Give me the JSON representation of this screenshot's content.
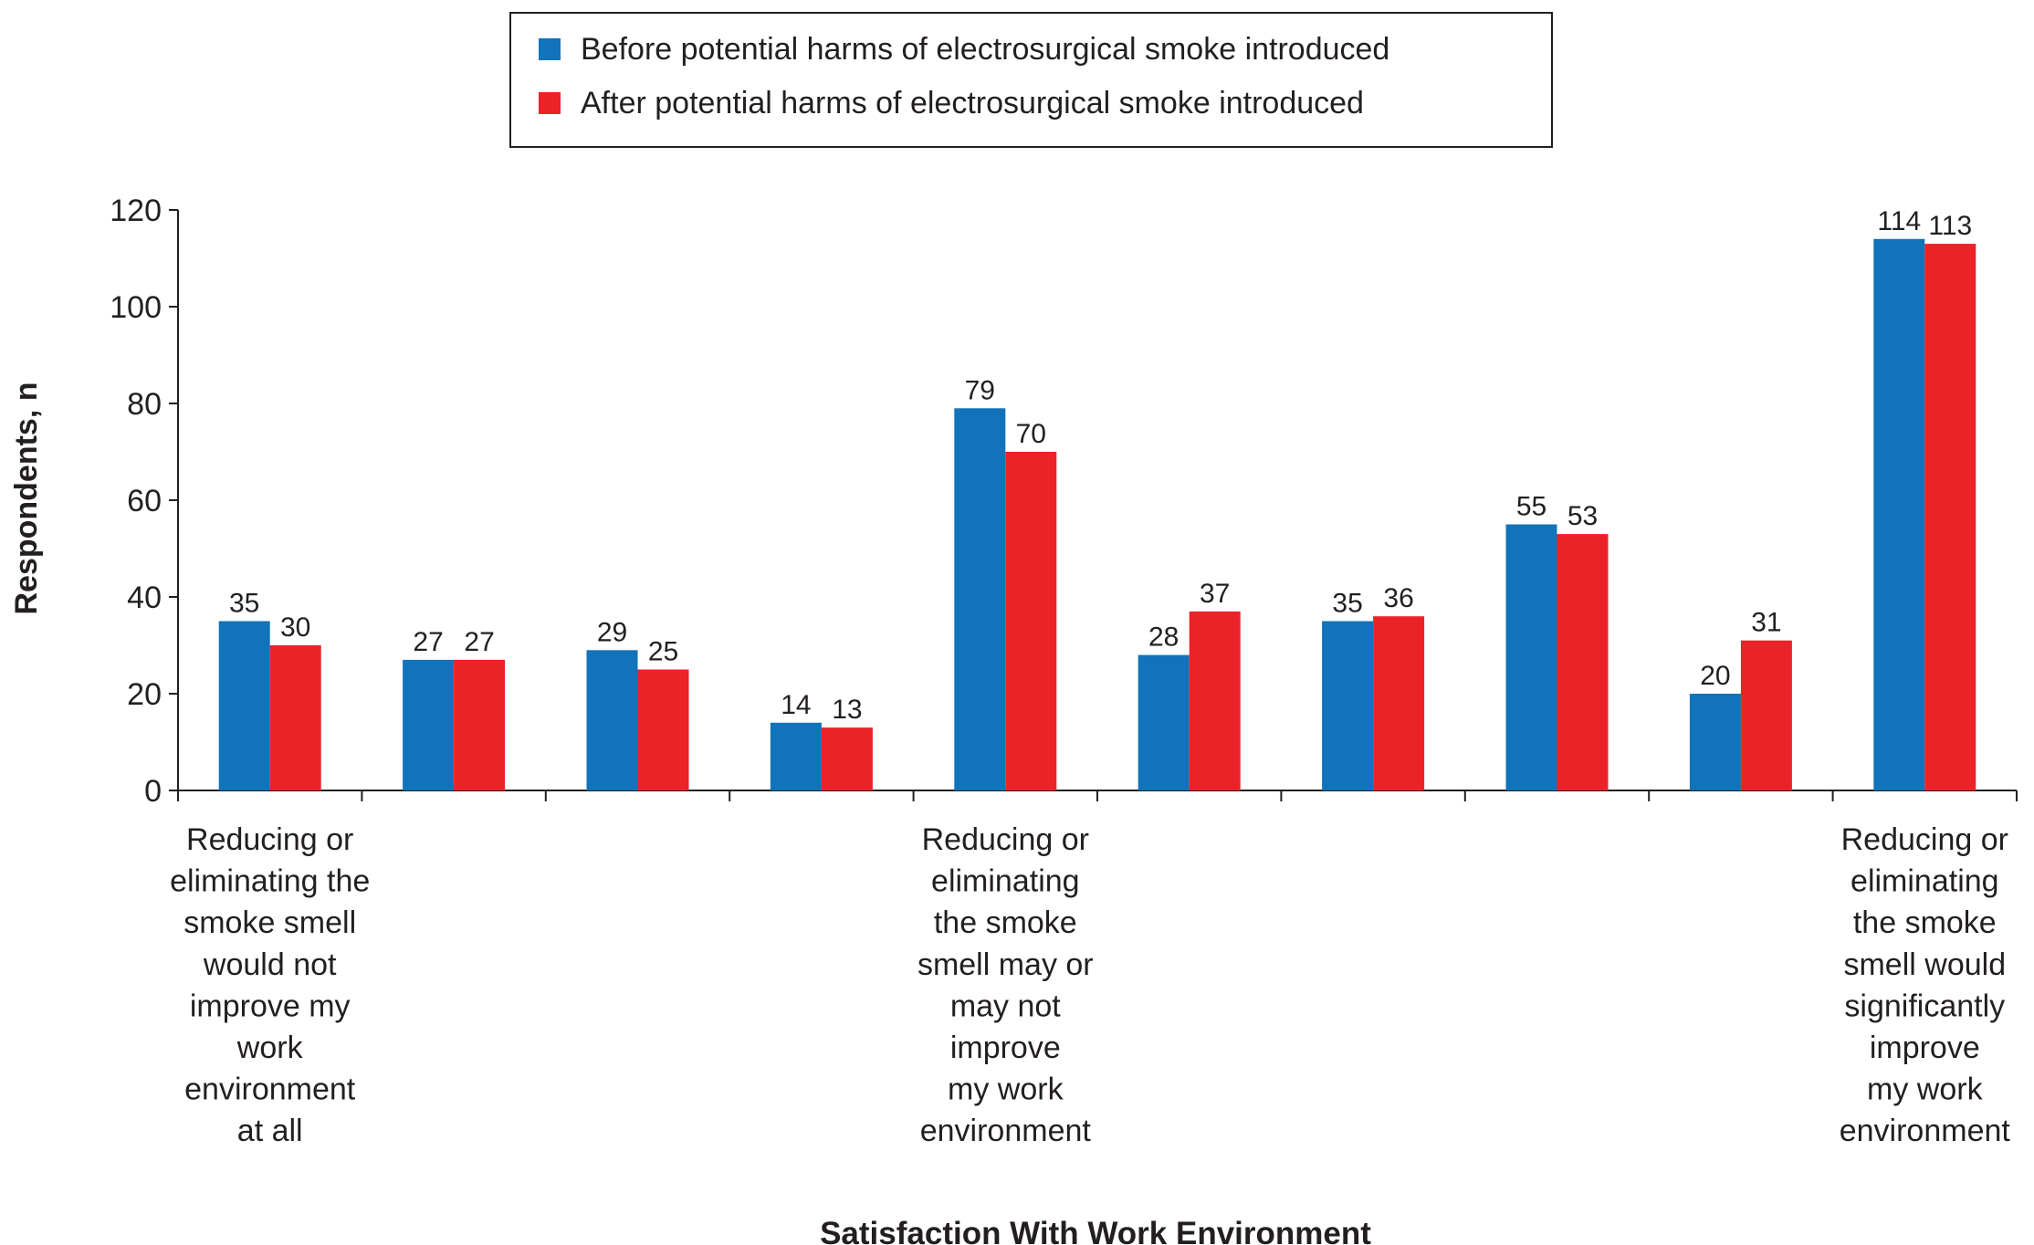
{
  "chart_data": {
    "type": "bar",
    "title": "",
    "xlabel": "Satisfaction With Work Environment",
    "ylabel": "Respondents, n",
    "ylim": [
      0,
      120
    ],
    "yticks": [
      0,
      20,
      40,
      60,
      80,
      100,
      120
    ],
    "grid": false,
    "legend_position": "top-center",
    "categories": [
      "Reducing or eliminating the smoke smell would not improve my work environment at all",
      "",
      "",
      "",
      "Reducing or eliminating the smoke smell may or may not improve my work environment",
      "",
      "",
      "",
      "",
      "Reducing or eliminating the smoke smell would significantly improve my work environment"
    ],
    "category_label_lines": [
      [
        "Reducing or",
        "eliminating the",
        "smoke smell",
        "would not",
        "improve my",
        "work",
        "environment",
        "at all"
      ],
      [],
      [],
      [],
      [
        "Reducing or",
        "eliminating",
        "the smoke",
        "smell may or",
        "may not",
        "improve",
        "my work",
        "environment"
      ],
      [],
      [],
      [],
      [],
      [
        "Reducing or",
        "eliminating",
        "the smoke",
        "smell would",
        "significantly",
        "improve",
        "my work",
        "environment"
      ]
    ],
    "series": [
      {
        "name": "Before potential harms of electrosurgical smoke introduced",
        "color": "#1173ba",
        "values": [
          35,
          27,
          29,
          14,
          79,
          28,
          35,
          55,
          20,
          114
        ]
      },
      {
        "name": "After potential harms of electrosurgical smoke introduced",
        "color": "#ec2229",
        "values": [
          30,
          27,
          25,
          13,
          70,
          37,
          36,
          53,
          31,
          113
        ]
      }
    ]
  }
}
